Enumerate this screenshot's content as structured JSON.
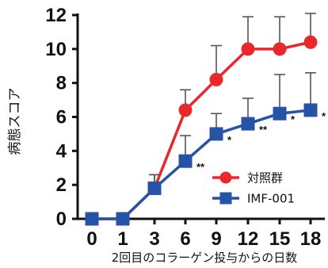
{
  "chart_data": {
    "type": "line",
    "title": "",
    "xlabel": "2回目のコラーゲン投与からの日数",
    "ylabel": "病態スコア",
    "categories": [
      "0",
      "1",
      "3",
      "6",
      "9",
      "12",
      "15",
      "18"
    ],
    "ylim": [
      0,
      12
    ],
    "yticks": [
      0,
      2,
      4,
      6,
      8,
      10,
      12
    ],
    "grid": false,
    "legend_position": "bottom-right",
    "series": [
      {
        "name": "対照群",
        "color": "#e8282b",
        "marker": "circle",
        "values": [
          0,
          0,
          1.8,
          6.4,
          8.2,
          10.0,
          10.0,
          10.4
        ],
        "error_upper": [
          0,
          0,
          0.8,
          1.2,
          2.0,
          1.9,
          1.9,
          1.7
        ]
      },
      {
        "name": "IMF-001",
        "color": "#2553a6",
        "marker": "square",
        "values": [
          0,
          0,
          1.8,
          3.4,
          5.0,
          5.6,
          6.2,
          6.4
        ],
        "error_upper": [
          0,
          0,
          0.8,
          1.5,
          1.2,
          1.5,
          2.3,
          2.2
        ],
        "significance": [
          "",
          "",
          "",
          "**",
          "*",
          "**",
          "*",
          "*"
        ]
      }
    ]
  }
}
